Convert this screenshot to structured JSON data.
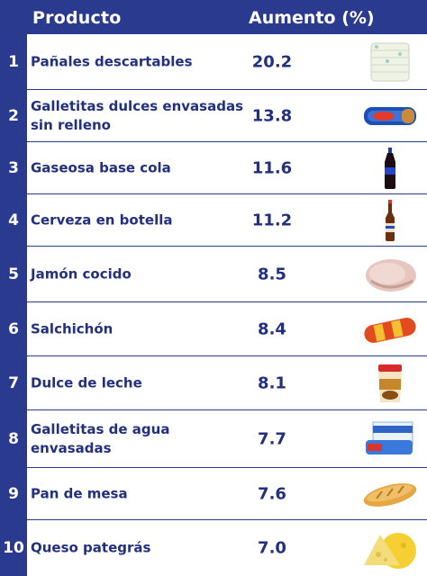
{
  "header": {
    "product_label": "Producto",
    "increase_label": "Aumento (%)"
  },
  "rows": [
    {
      "rank": "1",
      "name": "Pañales descartables",
      "value": "20.2",
      "icon": "diapers-icon"
    },
    {
      "rank": "2",
      "name": "Galletitas dulces envasadas sin relleno",
      "value": "13.8",
      "icon": "sweet-cookies-package-icon"
    },
    {
      "rank": "3",
      "name": "Gaseosa base cola",
      "value": "11.6",
      "icon": "cola-bottle-icon"
    },
    {
      "rank": "4",
      "name": "Cerveza en botella",
      "value": "11.2",
      "icon": "beer-bottle-icon"
    },
    {
      "rank": "5",
      "name": "Jamón cocido",
      "value": "8.5",
      "icon": "ham-icon"
    },
    {
      "rank": "6",
      "name": "Salchichón",
      "value": "8.4",
      "icon": "salami-icon"
    },
    {
      "rank": "7",
      "name": "Dulce de leche",
      "value": "8.1",
      "icon": "dulce-de-leche-jar-icon"
    },
    {
      "rank": "8",
      "name": "Galletitas de agua envasadas",
      "value": "7.7",
      "icon": "crackers-package-icon"
    },
    {
      "rank": "9",
      "name": "Pan de mesa",
      "value": "7.6",
      "icon": "bread-icon"
    },
    {
      "rank": "10",
      "name": "Queso pategrás",
      "value": "7.0",
      "icon": "cheese-icon"
    }
  ],
  "colors": {
    "navy": "#2a3a8e",
    "text": "#22307f",
    "background": "#ffffff"
  }
}
